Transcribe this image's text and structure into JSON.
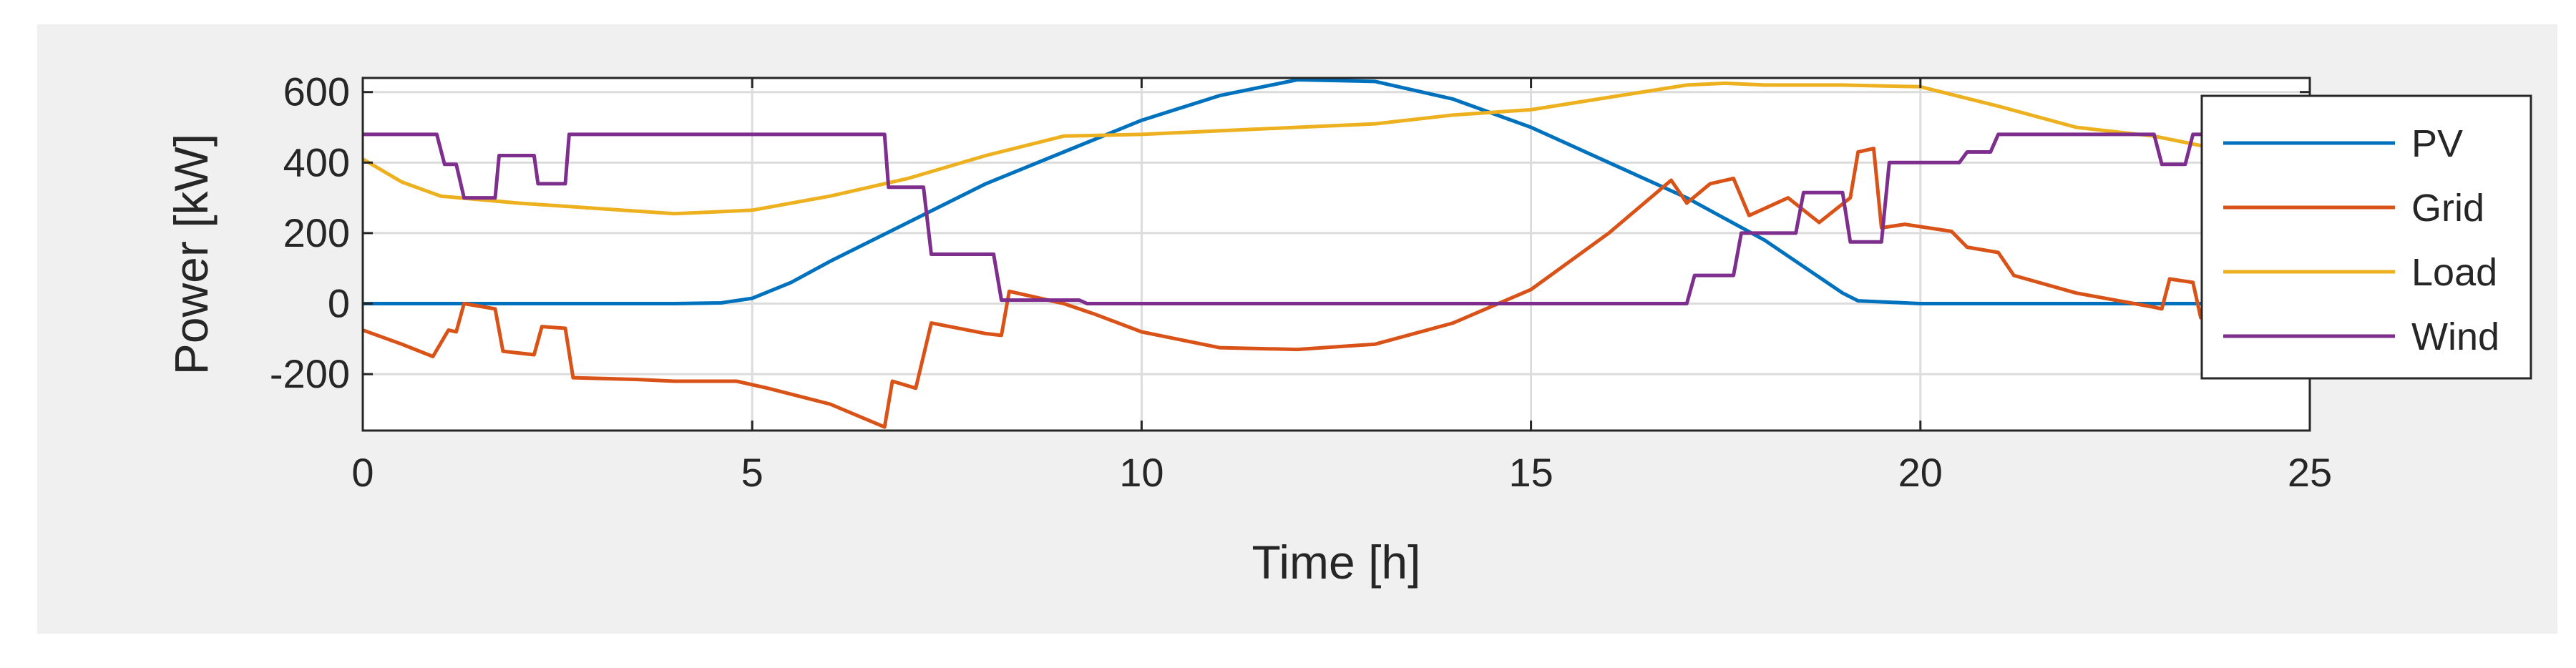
{
  "chart_data": {
    "type": "line",
    "xlabel": "Time [h]",
    "ylabel": "Power [kW]",
    "xlim": [
      0,
      25
    ],
    "ylim": [
      -360,
      640
    ],
    "xticks": [
      "0",
      "5",
      "10",
      "15",
      "20",
      "25"
    ],
    "yticks": [
      "-200",
      "0",
      "200",
      "400",
      "600"
    ],
    "grid": true,
    "legend_position": "top-right",
    "series": [
      {
        "name": "PV",
        "color": "#0072BD",
        "points": [
          [
            0,
            0
          ],
          [
            4,
            0
          ],
          [
            4.6,
            2
          ],
          [
            5,
            15
          ],
          [
            5.5,
            60
          ],
          [
            6,
            120
          ],
          [
            7,
            230
          ],
          [
            8,
            340
          ],
          [
            9,
            430
          ],
          [
            10,
            520
          ],
          [
            11,
            590
          ],
          [
            12,
            635
          ],
          [
            13,
            630
          ],
          [
            14,
            580
          ],
          [
            15,
            500
          ],
          [
            16,
            400
          ],
          [
            17,
            300
          ],
          [
            18,
            180
          ],
          [
            19,
            30
          ],
          [
            19.2,
            8
          ],
          [
            20,
            0
          ],
          [
            25,
            0
          ]
        ]
      },
      {
        "name": "Grid",
        "color": "#D95319",
        "points": [
          [
            0,
            -75
          ],
          [
            0.5,
            -115
          ],
          [
            0.9,
            -150
          ],
          [
            1.1,
            -75
          ],
          [
            1.2,
            -80
          ],
          [
            1.3,
            0
          ],
          [
            1.7,
            -15
          ],
          [
            1.8,
            -135
          ],
          [
            2.2,
            -145
          ],
          [
            2.3,
            -65
          ],
          [
            2.6,
            -70
          ],
          [
            2.7,
            -210
          ],
          [
            3.5,
            -215
          ],
          [
            4,
            -220
          ],
          [
            4.8,
            -220
          ],
          [
            5.2,
            -240
          ],
          [
            6,
            -285
          ],
          [
            6.7,
            -350
          ],
          [
            6.8,
            -220
          ],
          [
            7.1,
            -240
          ],
          [
            7.3,
            -55
          ],
          [
            8,
            -85
          ],
          [
            8.2,
            -90
          ],
          [
            8.3,
            35
          ],
          [
            9,
            0
          ],
          [
            9.4,
            -30
          ],
          [
            10,
            -80
          ],
          [
            11,
            -125
          ],
          [
            12,
            -130
          ],
          [
            13,
            -115
          ],
          [
            14,
            -55
          ],
          [
            15,
            40
          ],
          [
            16,
            200
          ],
          [
            16.8,
            350
          ],
          [
            17,
            285
          ],
          [
            17.3,
            340
          ],
          [
            17.6,
            355
          ],
          [
            17.8,
            250
          ],
          [
            18.3,
            300
          ],
          [
            18.7,
            230
          ],
          [
            19.1,
            300
          ],
          [
            19.2,
            430
          ],
          [
            19.4,
            440
          ],
          [
            19.5,
            215
          ],
          [
            19.8,
            225
          ],
          [
            20.4,
            205
          ],
          [
            20.6,
            160
          ],
          [
            21,
            145
          ],
          [
            21.2,
            80
          ],
          [
            22,
            30
          ],
          [
            23,
            -10
          ],
          [
            23.1,
            -15
          ],
          [
            23.2,
            70
          ],
          [
            23.5,
            60
          ],
          [
            23.6,
            -40
          ],
          [
            24,
            -60
          ]
        ]
      },
      {
        "name": "Load",
        "color": "#EDB120",
        "points": [
          [
            0,
            410
          ],
          [
            0.5,
            345
          ],
          [
            1,
            305
          ],
          [
            2,
            285
          ],
          [
            3,
            270
          ],
          [
            4,
            255
          ],
          [
            5,
            265
          ],
          [
            6,
            305
          ],
          [
            7,
            355
          ],
          [
            8,
            420
          ],
          [
            9,
            475
          ],
          [
            10,
            480
          ],
          [
            11,
            490
          ],
          [
            12,
            500
          ],
          [
            13,
            510
          ],
          [
            14,
            535
          ],
          [
            15,
            550
          ],
          [
            16,
            585
          ],
          [
            17,
            620
          ],
          [
            17.5,
            625
          ],
          [
            18,
            620
          ],
          [
            19,
            620
          ],
          [
            20,
            615
          ],
          [
            21,
            560
          ],
          [
            22,
            500
          ],
          [
            23,
            475
          ],
          [
            24,
            430
          ],
          [
            24.5,
            400
          ]
        ]
      },
      {
        "name": "Wind",
        "color": "#7E2F8E",
        "points": [
          [
            0,
            480
          ],
          [
            0.95,
            480
          ],
          [
            1.05,
            395
          ],
          [
            1.2,
            395
          ],
          [
            1.3,
            300
          ],
          [
            1.7,
            300
          ],
          [
            1.75,
            420
          ],
          [
            2.2,
            420
          ],
          [
            2.25,
            340
          ],
          [
            2.6,
            340
          ],
          [
            2.65,
            480
          ],
          [
            6.7,
            480
          ],
          [
            6.75,
            330
          ],
          [
            7.2,
            330
          ],
          [
            7.3,
            140
          ],
          [
            8.1,
            140
          ],
          [
            8.2,
            10
          ],
          [
            9.2,
            10
          ],
          [
            9.3,
            0
          ],
          [
            17,
            0
          ],
          [
            17.1,
            80
          ],
          [
            17.6,
            80
          ],
          [
            17.7,
            200
          ],
          [
            18.4,
            200
          ],
          [
            18.5,
            315
          ],
          [
            19.0,
            315
          ],
          [
            19.1,
            175
          ],
          [
            19.5,
            175
          ],
          [
            19.6,
            400
          ],
          [
            20.5,
            400
          ],
          [
            20.6,
            430
          ],
          [
            20.9,
            430
          ],
          [
            21.0,
            480
          ],
          [
            23.0,
            480
          ],
          [
            23.1,
            395
          ],
          [
            23.4,
            395
          ],
          [
            23.5,
            480
          ],
          [
            24.5,
            480
          ]
        ]
      }
    ]
  }
}
